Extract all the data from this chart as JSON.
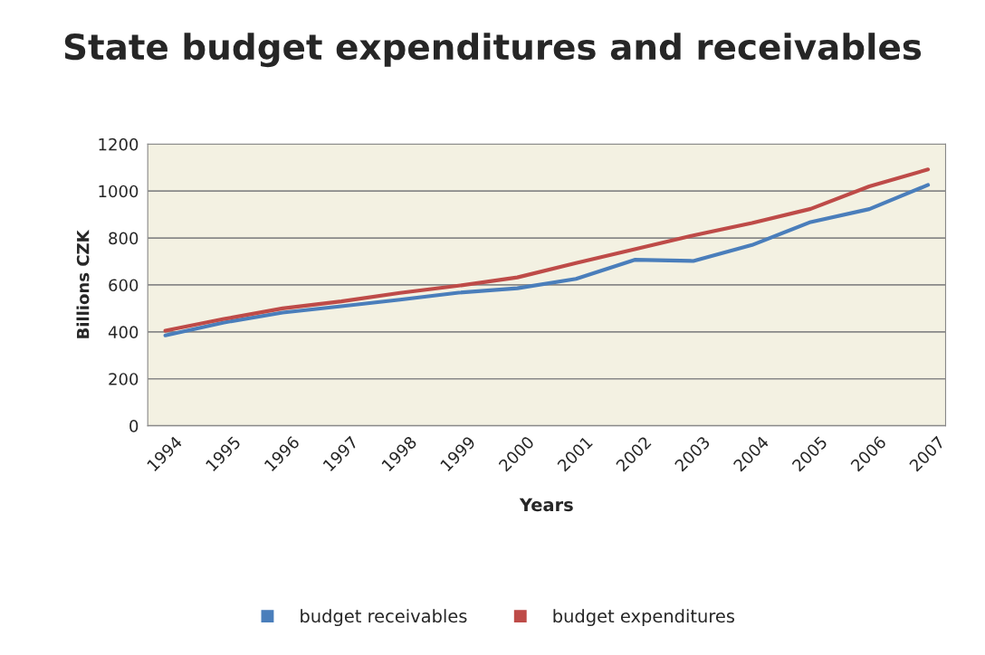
{
  "chart_data": {
    "type": "line",
    "title": "State budget expenditures and receivables",
    "xlabel": "Years",
    "ylabel": "Billions CZK",
    "categories": [
      "1994",
      "1995",
      "1996",
      "1997",
      "1998",
      "1999",
      "2000",
      "2001",
      "2002",
      "2003",
      "2004",
      "2005",
      "2006",
      "2007"
    ],
    "series": [
      {
        "name": "budget receivables",
        "color": "#4a7ebb",
        "values": [
          385,
          440,
          482,
          509,
          537,
          567,
          586,
          626,
          707,
          702,
          770,
          868,
          923,
          1026
        ]
      },
      {
        "name": "budget expenditures",
        "color": "#be4b48",
        "values": [
          405,
          455,
          500,
          530,
          566,
          597,
          632,
          693,
          752,
          811,
          864,
          924,
          1020,
          1092
        ]
      }
    ],
    "ylim": [
      0,
      1200
    ],
    "yticks": [
      0,
      200,
      400,
      600,
      800,
      1000,
      1200
    ],
    "grid": "y",
    "legend": "bottom",
    "marker": "none",
    "line_style": "solid"
  }
}
